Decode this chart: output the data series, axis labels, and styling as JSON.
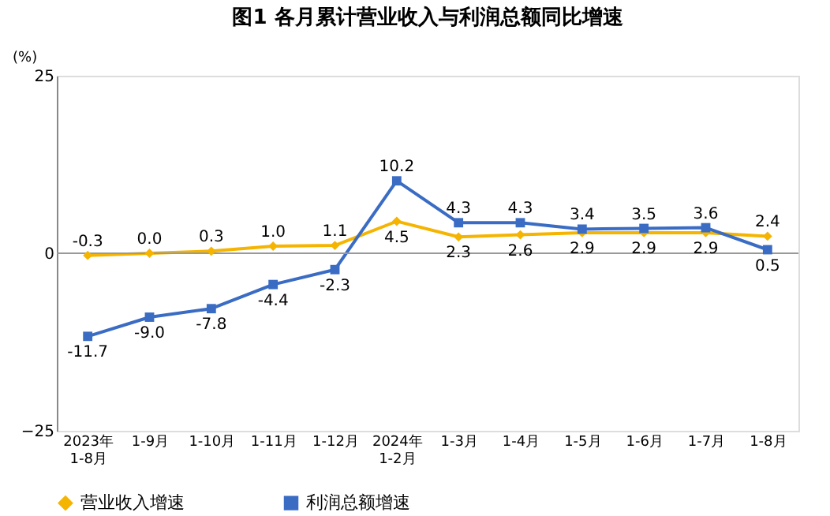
{
  "chart_data": {
    "type": "line",
    "title": "图1  各月累计营业收入与利润总额同比增速",
    "ylabel": "(%)",
    "categories": [
      "2023年\n1-8月",
      "1-9月",
      "1-10月",
      "1-11月",
      "1-12月",
      "2024年\n1-2月",
      "1-3月",
      "1-4月",
      "1-5月",
      "1-6月",
      "1-7月",
      "1-8月"
    ],
    "series": [
      {
        "name": "营业收入增速",
        "color": "#f5b400",
        "marker": "diamond",
        "values": [
          -0.3,
          0.0,
          0.3,
          1.0,
          1.1,
          4.5,
          2.3,
          2.6,
          2.9,
          2.9,
          2.9,
          2.4
        ],
        "value_labels": [
          "-0.3",
          "0.0",
          "0.3",
          "1.0",
          "1.1",
          "4.5",
          "2.3",
          "2.6",
          "2.9",
          "2.9",
          "2.9",
          "2.4"
        ]
      },
      {
        "name": "利润总额增速",
        "color": "#3a6cc4",
        "marker": "square",
        "values": [
          -11.7,
          -9.0,
          -7.8,
          -4.4,
          -2.3,
          10.2,
          4.3,
          4.3,
          3.4,
          3.5,
          3.6,
          0.5
        ],
        "value_labels": [
          "-11.7",
          "-9.0",
          "-7.8",
          "-4.4",
          "-2.3",
          "10.2",
          "4.3",
          "4.3",
          "3.4",
          "3.5",
          "3.6",
          "0.5"
        ]
      }
    ],
    "ylim": [
      -25,
      25
    ],
    "yticks": [
      -25,
      0,
      25
    ],
    "grid": false,
    "legend": "bottom",
    "ref_lines": [
      {
        "axis": "y",
        "value": 0,
        "color": "#999999"
      }
    ]
  }
}
